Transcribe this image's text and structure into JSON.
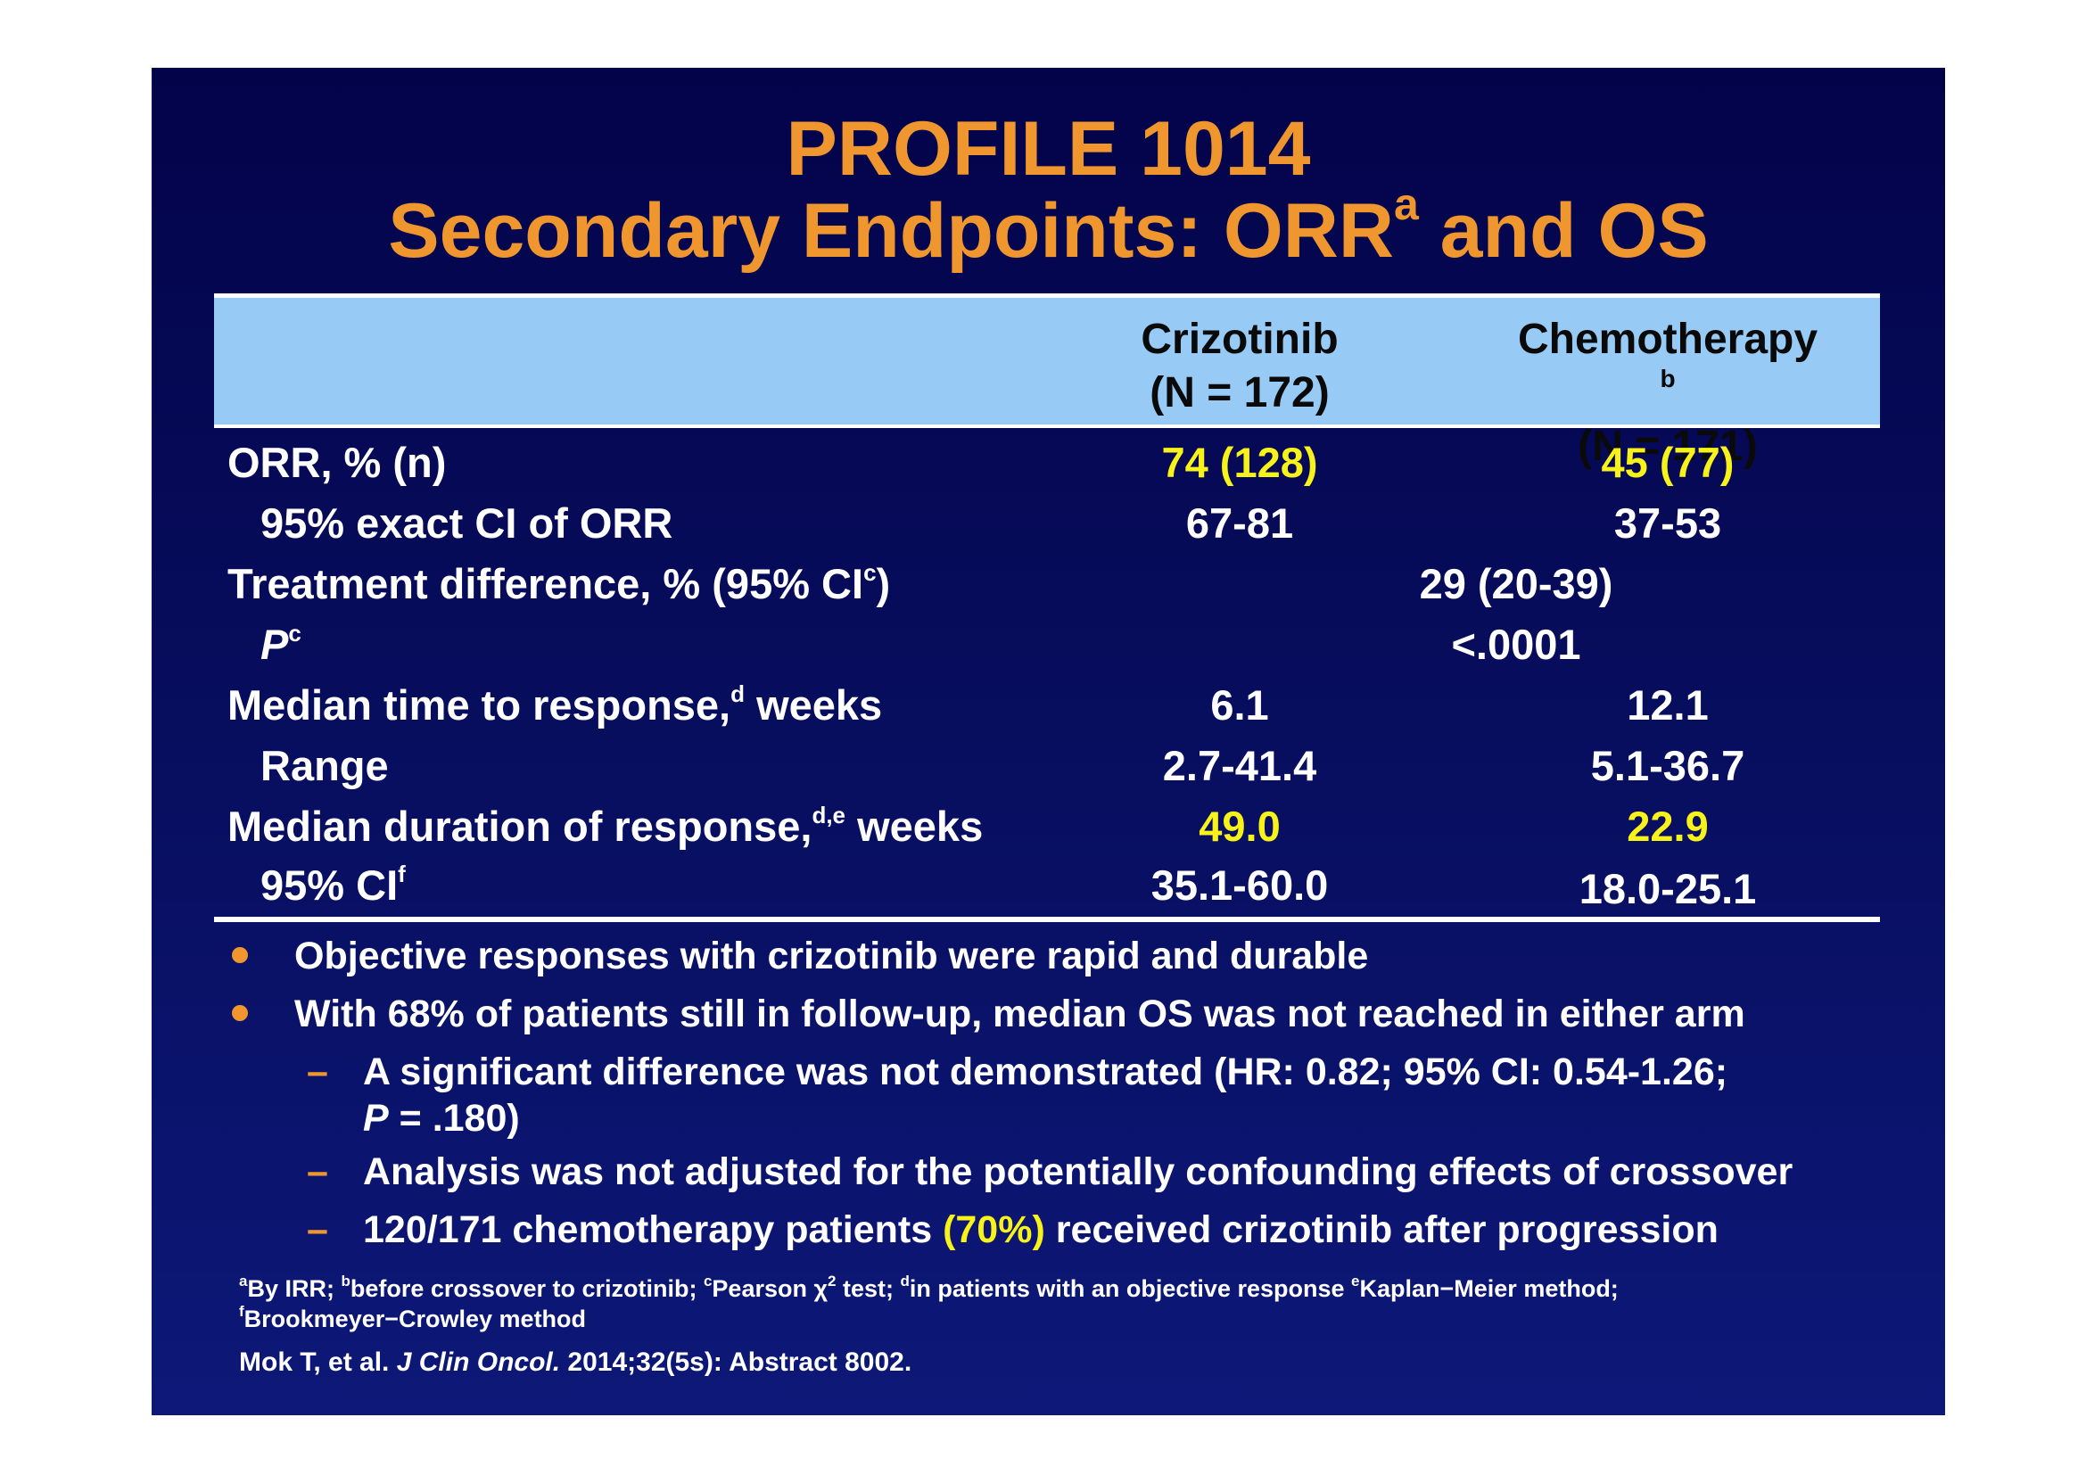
{
  "title": {
    "line1": "PROFILE 1014",
    "line2_main": "Secondary Endpoints: ORR",
    "line2_sup": "a",
    "line2_end": " and OS"
  },
  "table": {
    "columns": [
      {
        "name": "Crizotinib",
        "n": "(N = 172)",
        "sup": ""
      },
      {
        "name": "Chemotherapy",
        "n": "(N = 171)",
        "sup": "b"
      }
    ],
    "rows": [
      {
        "label": "ORR, % (n)",
        "label_sup": "",
        "c1": "74 (128)",
        "c2": "45 (77)"
      },
      {
        "label": "95% exact CI of ORR",
        "label_sup": "",
        "c1": "67-81",
        "c2": "37-53"
      },
      {
        "label": "Treatment difference, % (95% CI",
        "label_sup": "c",
        "label_end": ")",
        "span": "29 (20-39)"
      },
      {
        "label": "P",
        "label_sup": "c",
        "span": "<.0001"
      },
      {
        "label": "Median time to response,",
        "label_sup": "d",
        "label_end": " weeks",
        "c1": "6.1",
        "c2": "12.1"
      },
      {
        "label": "Range",
        "label_sup": "",
        "c1": "2.7-41.4",
        "c2": "5.1-36.7"
      },
      {
        "label": "Median duration of response,",
        "label_sup": "d,e",
        "label_end": " weeks",
        "c1": "49.0",
        "c2": "22.9"
      },
      {
        "label": "95% CI",
        "label_sup": "f",
        "c1": "35.1-60.0",
        "c2": "18.0-25.1"
      }
    ]
  },
  "bullets": {
    "b1": "Objective responses with crizotinib were rapid and durable",
    "b2": "With 68% of patients still in follow-up, median OS was not reached in either arm",
    "dash": "–",
    "s1_line1": "A significant difference was not demonstrated (HR: 0.82; 95% CI: 0.54-1.26;",
    "s1_line2_p": "P",
    "s1_line2_rest": " = .180)",
    "s2": "Analysis was not adjusted for the potentially confounding effects of crossover",
    "s3_a": "120/171 chemotherapy patients ",
    "s3_pct": "(70%)",
    "s3_b": " received crizotinib after progression"
  },
  "footnote": {
    "a_sup": "a",
    "a": "By IRR; ",
    "b_sup": "b",
    "b": "before crossover to crizotinib; ",
    "c_sup": "c",
    "c": "Pearson χ",
    "chi_sup": "2",
    "c2": " test; ",
    "d_sup": "d",
    "d": "in patients with an objective response ",
    "e_sup": "e",
    "e": "Kaplan−Meier method;",
    "f_sup": "f",
    "f": "Brookmeyer−Crowley method"
  },
  "reference": {
    "authors": "Mok T, et al. ",
    "journal": "J Clin Oncol.",
    "rest": " 2014;32(5s): Abstract 8002."
  },
  "colors": {
    "background": "#070d5c",
    "title": "#f0962e",
    "header_band": "#97cbf5",
    "highlight": "#f7f21a",
    "bullet": "#f0962e"
  }
}
